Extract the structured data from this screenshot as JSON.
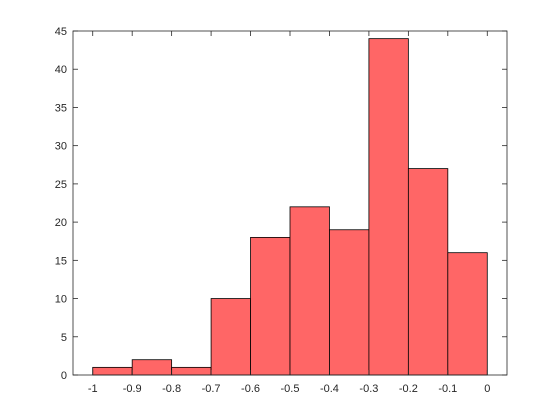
{
  "chart_data": {
    "type": "histogram",
    "bins": [
      -1,
      -0.9,
      -0.8,
      -0.7,
      -0.6,
      -0.5,
      -0.4,
      -0.3,
      -0.2,
      -0.1,
      0
    ],
    "values": [
      1,
      2,
      1,
      10,
      18,
      22,
      19,
      44,
      27,
      16
    ],
    "color": "#ff6666",
    "edgecolor": "#000000",
    "xlim": [
      -1.05,
      0.05
    ],
    "xticks": [
      -1,
      -0.9,
      -0.8,
      -0.7,
      -0.6,
      -0.5,
      -0.4,
      -0.3,
      -0.2,
      -0.1,
      0
    ],
    "ylim": [
      0,
      45
    ],
    "yticks": [
      0,
      5,
      10,
      15,
      20,
      25,
      30,
      35,
      40,
      45
    ]
  }
}
